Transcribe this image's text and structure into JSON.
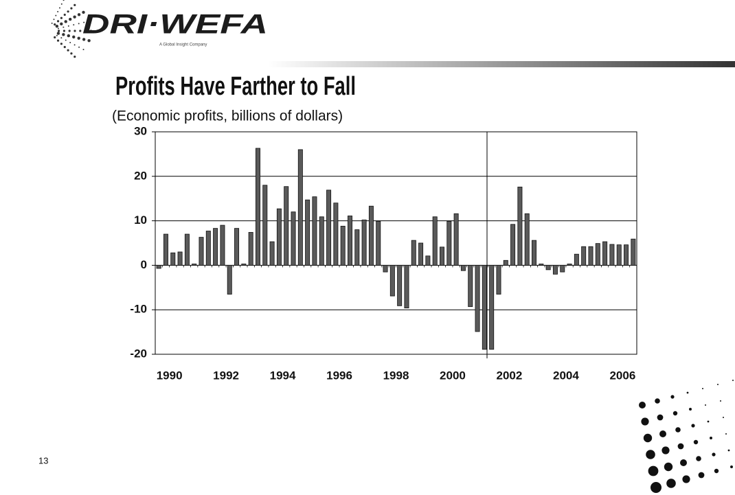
{
  "header": {
    "logo": "DRI·WEFA",
    "tagline": "A Global Insight Company"
  },
  "slide_number": "13",
  "chart_data": {
    "type": "bar",
    "title": "Profits Have Farther to Fall",
    "subtitle": "(Economic profits, billions of dollars)",
    "categories": [
      "1990",
      null,
      null,
      null,
      null,
      null,
      null,
      null,
      "1992",
      null,
      null,
      null,
      null,
      null,
      null,
      null,
      "1994",
      null,
      null,
      null,
      null,
      null,
      null,
      null,
      "1996",
      null,
      null,
      null,
      null,
      null,
      null,
      null,
      "1998",
      null,
      null,
      null,
      null,
      null,
      null,
      null,
      "2000",
      null,
      null,
      null,
      null,
      null,
      null,
      null,
      "2002",
      null,
      null,
      null,
      null,
      null,
      null,
      null,
      "2004",
      null,
      null,
      null,
      null,
      null,
      null,
      null,
      "2006",
      null,
      null,
      null
    ],
    "values": [
      -0.7,
      7,
      2.8,
      3,
      7,
      0.3,
      6.3,
      7.7,
      8.3,
      9,
      -6.5,
      8.3,
      0.3,
      7.4,
      26.3,
      18,
      5.3,
      12.7,
      17.7,
      12,
      26,
      14.7,
      15.4,
      10.9,
      16.9,
      14,
      8.8,
      11.1,
      8,
      10.2,
      13.3,
      9.9,
      -1.5,
      -6.9,
      -9.1,
      -9.6,
      5.6,
      5,
      2.1,
      10.9,
      4.1,
      9.9,
      11.6,
      -1.2,
      -9.3,
      -14.9,
      -18.9,
      -18.9,
      -6.5,
      1.1,
      9.2,
      17.6,
      11.6,
      5.6,
      0.3,
      -1,
      -2,
      -1.5,
      0.3,
      2.5,
      4.2,
      4.2,
      4.9,
      5.3,
      4.7,
      4.6,
      4.6,
      5.9
    ],
    "color": "#5a5a5a",
    "ylim": [
      -20,
      30
    ],
    "yticks": [
      -20,
      -10,
      0,
      10,
      20,
      30
    ],
    "grid": true
  }
}
